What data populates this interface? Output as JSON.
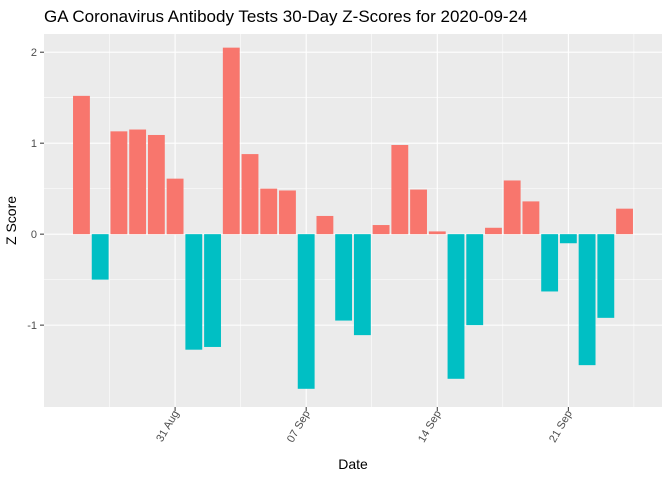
{
  "chart_data": {
    "type": "bar",
    "title": "GA Coronavirus Antibody Tests 30-Day Z-Scores for 2020-09-24",
    "xlabel": "Date",
    "ylabel": "Z Score",
    "x_tick_labels": [
      {
        "label": "31 Aug",
        "date": "2020-08-31"
      },
      {
        "label": "07 Sep",
        "date": "2020-09-07"
      },
      {
        "label": "14 Sep",
        "date": "2020-09-14"
      },
      {
        "label": "21 Sep",
        "date": "2020-09-21"
      }
    ],
    "y_ticks": [
      -1,
      0,
      1,
      2
    ],
    "ylim": [
      -1.9,
      2.2
    ],
    "xlim": [
      "2020-08-24",
      "2020-09-26"
    ],
    "grid": true,
    "legend": "none",
    "colors": {
      "positive": "#F8766D",
      "negative": "#00BFC4"
    },
    "dates": [
      "2020-08-26",
      "2020-08-27",
      "2020-08-28",
      "2020-08-29",
      "2020-08-30",
      "2020-08-31",
      "2020-09-01",
      "2020-09-02",
      "2020-09-03",
      "2020-09-04",
      "2020-09-05",
      "2020-09-06",
      "2020-09-07",
      "2020-09-08",
      "2020-09-09",
      "2020-09-10",
      "2020-09-11",
      "2020-09-12",
      "2020-09-13",
      "2020-09-14",
      "2020-09-15",
      "2020-09-16",
      "2020-09-17",
      "2020-09-18",
      "2020-09-19",
      "2020-09-20",
      "2020-09-21",
      "2020-09-22",
      "2020-09-23",
      "2020-09-24"
    ],
    "values": [
      1.52,
      -0.5,
      1.13,
      1.15,
      1.09,
      0.61,
      -1.27,
      -1.24,
      2.05,
      0.88,
      0.5,
      0.48,
      -1.7,
      0.2,
      -0.95,
      -1.11,
      0.1,
      0.98,
      0.49,
      0.03,
      -1.59,
      -1.0,
      0.07,
      0.59,
      0.36,
      -0.63,
      -0.1,
      -1.44,
      -0.92,
      0.28
    ]
  }
}
